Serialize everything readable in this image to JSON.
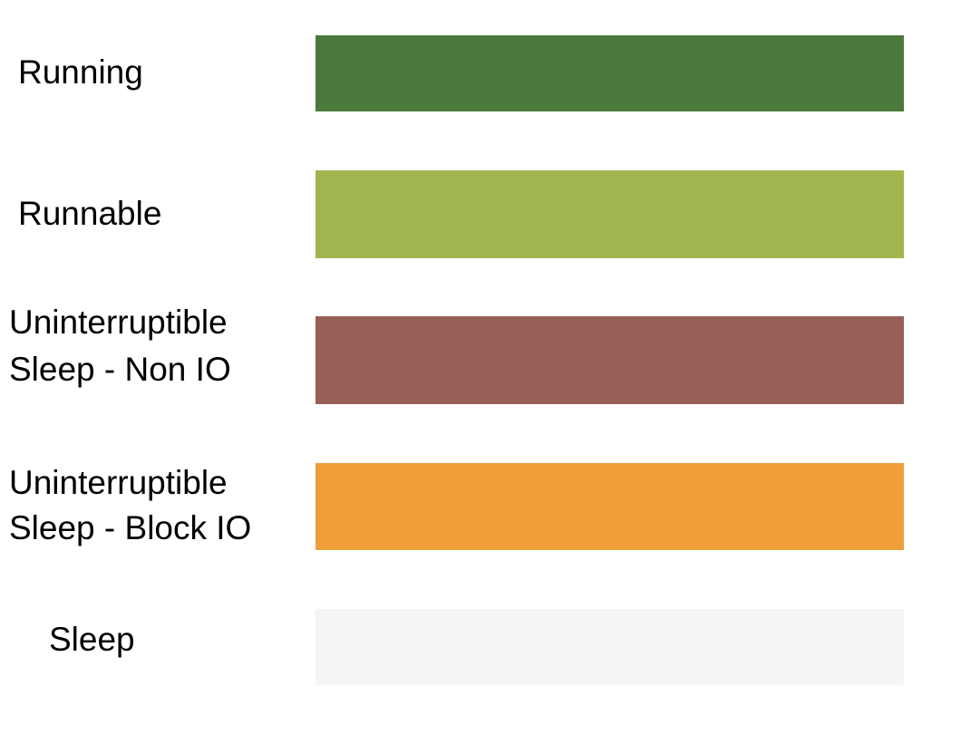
{
  "legend": {
    "items": [
      {
        "label_lines": [
          "Running"
        ],
        "color": "#4a7b3d"
      },
      {
        "label_lines": [
          "Runnable"
        ],
        "color": "#a1b64e"
      },
      {
        "label_lines": [
          "Uninterruptible",
          "Sleep - Non IO"
        ],
        "color": "#985f57"
      },
      {
        "label_lines": [
          "Uninterruptible",
          "Sleep - Block IO"
        ],
        "color": "#ef9e39"
      },
      {
        "label_lines": [
          "Sleep"
        ],
        "color": "#f5f5f5"
      }
    ]
  }
}
